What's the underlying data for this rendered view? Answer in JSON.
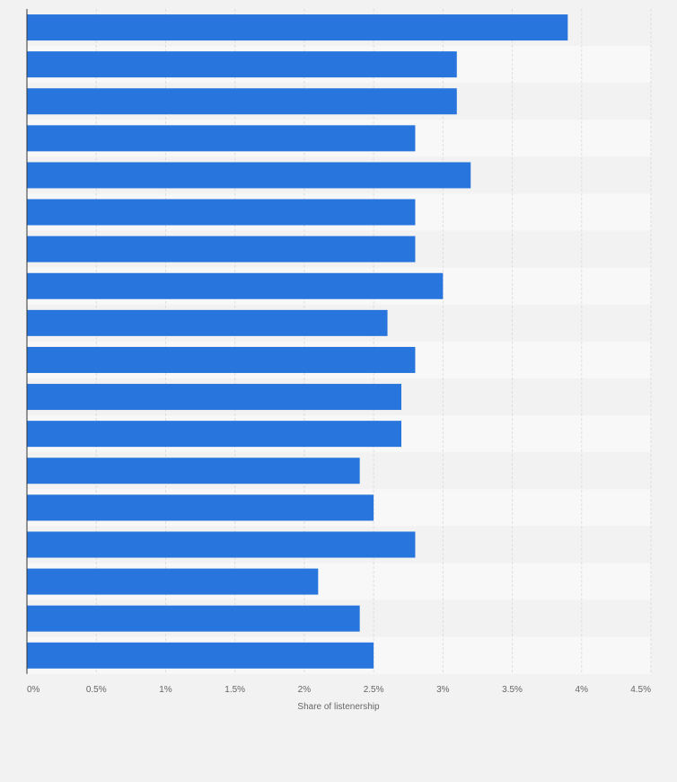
{
  "chart_data": {
    "type": "bar",
    "orientation": "horizontal",
    "title": "",
    "xlabel": "Share of listenership",
    "ylabel": "",
    "xlim": [
      0,
      4.5
    ],
    "grid": true,
    "legend": "none",
    "categories": [
      "",
      "",
      "",
      "",
      "",
      "",
      "",
      "",
      "",
      "",
      "",
      "",
      "",
      "",
      "",
      "",
      "",
      ""
    ],
    "series": [
      {
        "name": "Share of listenership",
        "values": [
          3.9,
          3.1,
          3.1,
          2.8,
          3.2,
          2.8,
          2.8,
          3.0,
          2.6,
          2.8,
          2.7,
          2.7,
          2.4,
          2.5,
          2.8,
          2.1,
          2.4,
          2.5
        ]
      }
    ],
    "ticks": [
      {
        "value": 0,
        "label": "0%"
      },
      {
        "value": 0.5,
        "label": "0.5%"
      },
      {
        "value": 1,
        "label": "1%"
      },
      {
        "value": 1.5,
        "label": "1.5%"
      },
      {
        "value": 2,
        "label": "2%"
      },
      {
        "value": 2.5,
        "label": "2.5%"
      },
      {
        "value": 3,
        "label": "3%"
      },
      {
        "value": 3.5,
        "label": "3.5%"
      },
      {
        "value": 4,
        "label": "4%"
      },
      {
        "value": 4.5,
        "label": "4.5%"
      }
    ]
  },
  "colors": {
    "bar": "#2876dd",
    "band_light": "#f8f8f8",
    "band_dark": "#f2f2f2",
    "grid": "#dedede",
    "axis": "#333333"
  }
}
